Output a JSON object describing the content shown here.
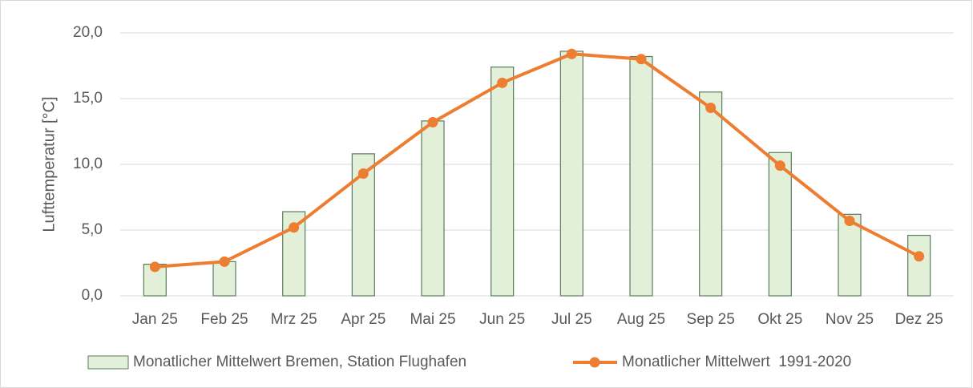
{
  "chart_data": {
    "type": "bar",
    "y_label": "Lufttemperatur [°C]",
    "categories": [
      "Jan 25",
      "Feb 25",
      "Mrz 25",
      "Apr 25",
      "Mai 25",
      "Jun 25",
      "Jul 25",
      "Aug 25",
      "Sep 25",
      "Okt 25",
      "Nov 25",
      "Dez 25"
    ],
    "series": [
      {
        "name": "Monatlicher Mittelwert Bremen, Station Flughafen",
        "type": "bar",
        "color": "#e2f0d9",
        "edge_color": "#5b7b5b",
        "values": [
          2.4,
          2.6,
          6.4,
          10.8,
          13.3,
          17.4,
          18.6,
          18.2,
          15.5,
          10.9,
          6.2,
          4.6
        ]
      },
      {
        "name": "Monatlicher Mittelwert  1991-2020",
        "type": "line",
        "color": "#ed7d31",
        "values": [
          2.2,
          2.6,
          5.2,
          9.3,
          13.2,
          16.2,
          18.4,
          18.0,
          14.3,
          9.9,
          5.7,
          3.0
        ]
      }
    ],
    "ylim": [
      0,
      20
    ],
    "yticks": [
      {
        "value": 0,
        "label": "0,0"
      },
      {
        "value": 5,
        "label": "5,0"
      },
      {
        "value": 10,
        "label": "10,0"
      },
      {
        "value": 15,
        "label": "15,0"
      },
      {
        "value": 20,
        "label": "20,0"
      }
    ],
    "grid": true,
    "legend": "bottom"
  }
}
